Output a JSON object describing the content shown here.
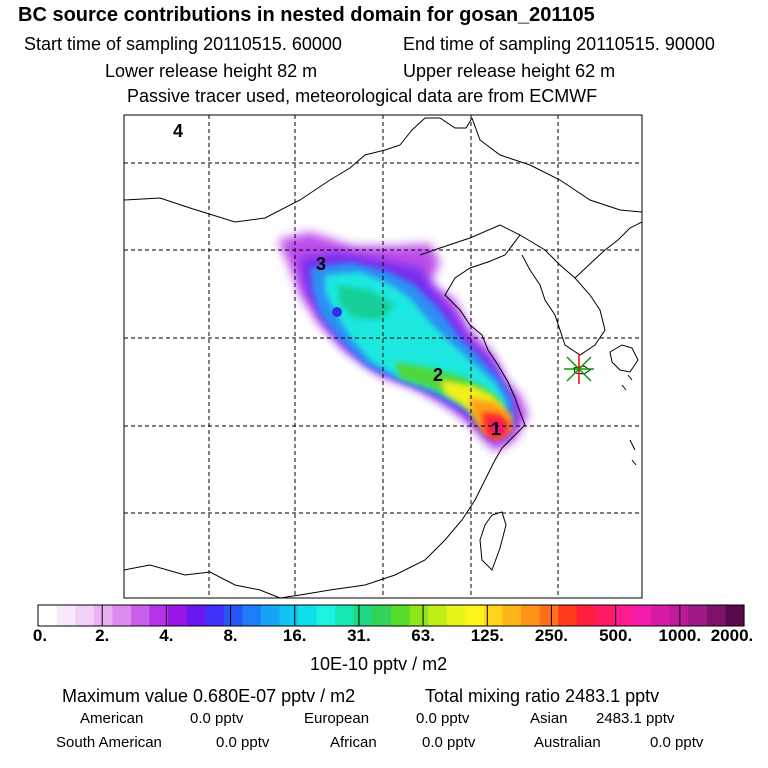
{
  "header": {
    "title": "BC  source contributions in nested domain for gosan_201105",
    "start": "Start time of sampling 20110515. 60000",
    "end": "End time of sampling 20110515. 90000",
    "lower": "Lower release height   82 m",
    "upper": "Upper release height   62 m",
    "tracer": "Passive tracer used, meteorological data are from ECMWF"
  },
  "map_labels": {
    "l1": "1",
    "l2": "2",
    "l3": "3",
    "l4": "4"
  },
  "colors": {
    "bins": [
      "#ffffff",
      "#f8e8fb",
      "#f3d0f7",
      "#e9b0f3",
      "#dc8cee",
      "#c95fea",
      "#b532ea",
      "#9b17e6",
      "#6a18f0",
      "#4130f5",
      "#2556f6",
      "#1d7cf8",
      "#17a3f6",
      "#12c4f0",
      "#10dfe9",
      "#1cf3e0",
      "#18e8b4",
      "#20d883",
      "#34d257",
      "#56dc2a",
      "#8ee61c",
      "#c0ef18",
      "#e8f41a",
      "#fff51c",
      "#ffd41a",
      "#ffb418",
      "#ff9418",
      "#ff7018",
      "#ff3c1c",
      "#ff1f3c",
      "#ff1a66",
      "#ff1a8e",
      "#f21cab",
      "#d61ba6",
      "#bf199c",
      "#a01786",
      "#7e1168",
      "#5a0a4c"
    ],
    "marker": "#00a000",
    "marker2": "#ff0000"
  },
  "colorbar": {
    "ticks": [
      "0.",
      "2.",
      "4.",
      "8.",
      "16.",
      "31.",
      "63.",
      "125.",
      "250.",
      "500.",
      "1000.",
      "2000."
    ],
    "units": "10E-10 pptv / m2"
  },
  "stats": {
    "max": "Maximum value  0.680E-07 pptv / m2",
    "total": "Total mixing ratio     2483.1 pptv",
    "american_label": "American",
    "american_val": "0.0 pptv",
    "european_label": "European",
    "european_val": "0.0 pptv",
    "asian_label": "Asian",
    "asian_val": "2483.1 pptv",
    "southam_label": "South American",
    "southam_val": "0.0 pptv",
    "african_label": "African",
    "african_val": "0.0 pptv",
    "australian_label": "Australian",
    "australian_val": "0.0 pptv"
  },
  "chart_data": {
    "type": "heatmap",
    "title": "BC  source contributions in nested domain for gosan_201105",
    "colorbar_ticks": [
      0,
      2,
      4,
      8,
      16,
      31,
      63,
      125,
      250,
      500,
      1000,
      2000
    ],
    "colorbar_units": "10E-10 pptv / m2",
    "annotations": [
      "1",
      "2",
      "3",
      "4"
    ],
    "max_value": "0.680E-07 pptv / m2",
    "total_mixing_ratio_pptv": 2483.1
  }
}
